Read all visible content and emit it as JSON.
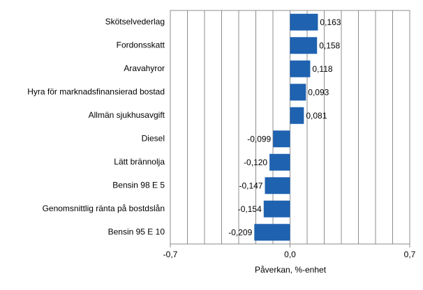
{
  "chart_data": {
    "type": "hbar",
    "categories": [
      "Skötselvederlag",
      "Fordonsskatt",
      "Aravahyror",
      "Hyra för marknadsfinansierad bostad",
      "Allmän sjukhusavgift",
      "Diesel",
      "Lätt brännolja",
      "Bensin 98 E  5",
      "Genomsnittlig ränta på bostdslån",
      "Bensin 95 E 10"
    ],
    "values": [
      0.163,
      0.158,
      0.118,
      0.093,
      0.081,
      -0.099,
      -0.12,
      -0.147,
      -0.154,
      -0.209
    ],
    "value_labels": [
      "0,163",
      "0,158",
      "0,118",
      "0,093",
      "0,081",
      "-0,099",
      "-0,120",
      "-0,147",
      "-0,154",
      "-0,209"
    ],
    "color": "#1f62b0",
    "xlim": [
      -0.7,
      0.7
    ],
    "xticks": [
      {
        "value": -0.7,
        "label": "-0,7"
      },
      {
        "value": 0,
        "label": "0,0"
      },
      {
        "value": 0.7,
        "label": "0,7"
      }
    ],
    "xgrid": [
      -0.6,
      -0.5,
      -0.4,
      -0.3,
      -0.2,
      -0.1,
      0.1,
      0.2,
      0.3,
      0.4,
      0.5,
      0.6
    ],
    "xlabel": "Påverkan, %-enhet"
  }
}
